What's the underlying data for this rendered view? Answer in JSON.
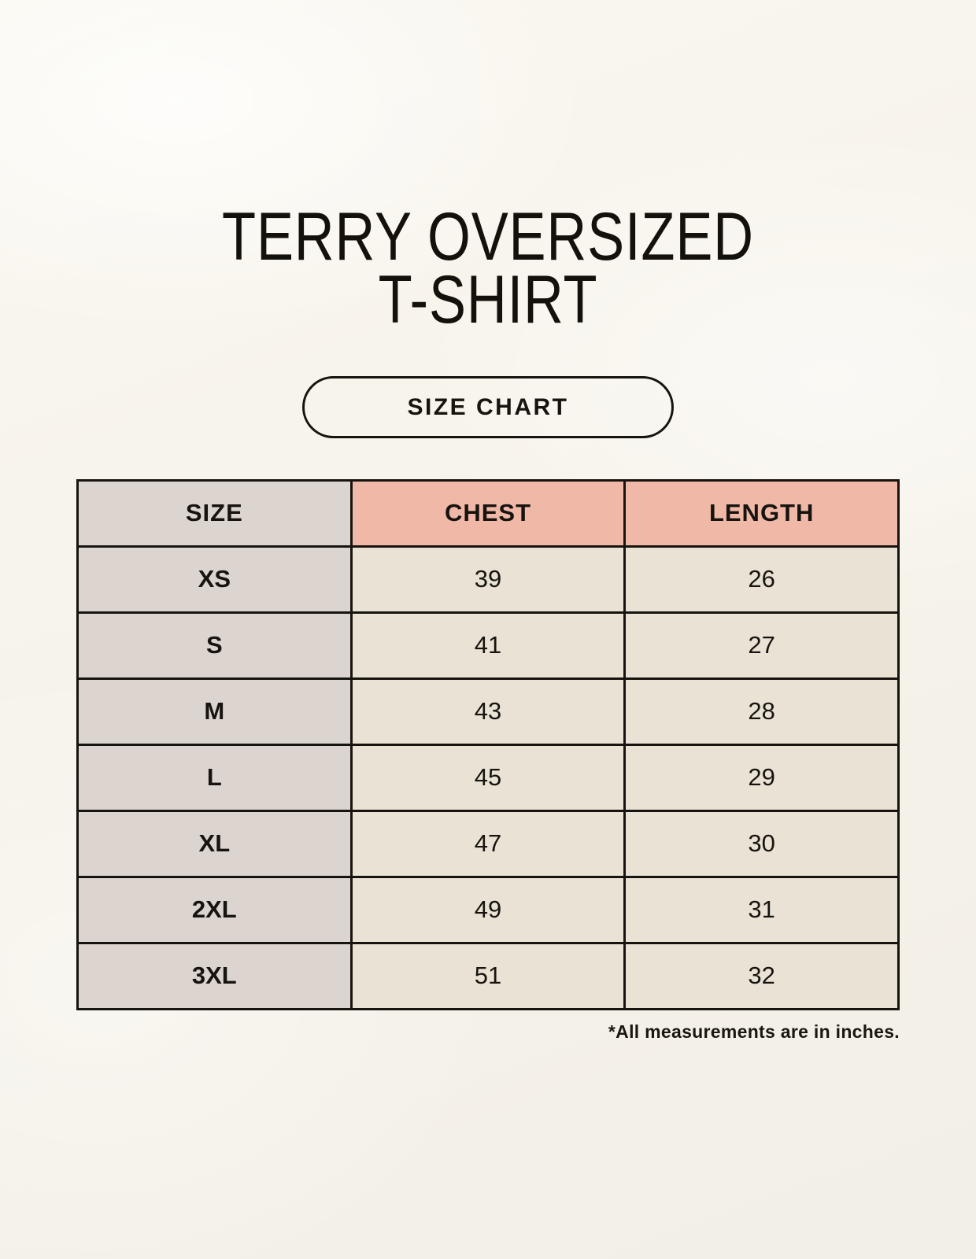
{
  "page": {
    "title_line1": "TERRY OVERSIZED",
    "title_line2": "T-SHIRT",
    "size_chart_button_label": "SIZE CHART",
    "footnote": "*All measurements are in inches."
  },
  "chart_data": {
    "type": "table",
    "title": "TERRY OVERSIZED T-SHIRT",
    "subtitle": "SIZE CHART",
    "columns": [
      "SIZE",
      "CHEST",
      "LENGTH"
    ],
    "rows": [
      {
        "size": "XS",
        "chest": "39",
        "length": "26"
      },
      {
        "size": "S",
        "chest": "41",
        "length": "27"
      },
      {
        "size": "M",
        "chest": "43",
        "length": "28"
      },
      {
        "size": "L",
        "chest": "45",
        "length": "29"
      },
      {
        "size": "XL",
        "chest": "47",
        "length": "30"
      },
      {
        "size": "2XL",
        "chest": "49",
        "length": "31"
      },
      {
        "size": "3XL",
        "chest": "51",
        "length": "32"
      }
    ],
    "units": "inches",
    "note": "*All measurements are in inches."
  },
  "table": {
    "headers": {
      "size": "SIZE",
      "chest": "CHEST",
      "length": "LENGTH"
    }
  },
  "colors": {
    "background": "#F6F3EA",
    "header_accent": "#F0B8A6",
    "size_column": "#DCD4CE",
    "data_cell": "#E9E2D5",
    "border": "#17140F",
    "text": "#14110C"
  }
}
